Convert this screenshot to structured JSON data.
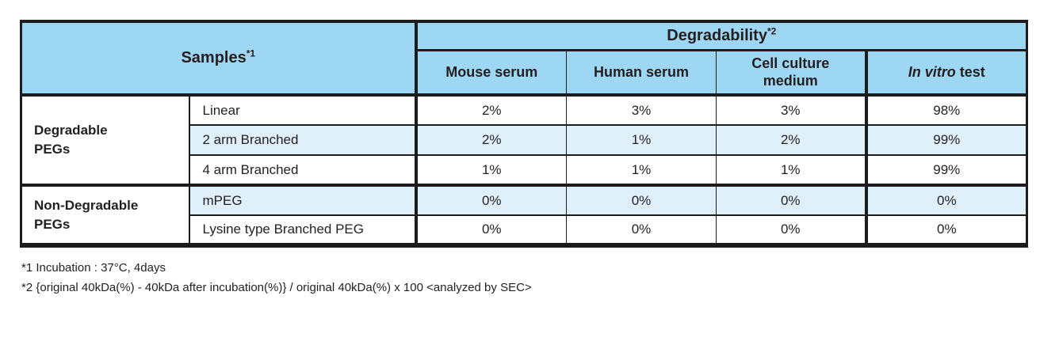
{
  "table": {
    "samples_header": {
      "text": "Samples",
      "sup": "*1"
    },
    "degradability_header": {
      "text": "Degradability",
      "sup": "*2"
    },
    "columns": [
      {
        "label": "Mouse serum"
      },
      {
        "label": "Human serum"
      },
      {
        "line1": "Cell culture",
        "line2": "medium"
      },
      {
        "italic": "In vitro",
        "rest": " test"
      }
    ],
    "groups": [
      {
        "label_line1": "Degradable",
        "label_line2": "PEGs",
        "rows": [
          {
            "type": "Linear",
            "values": [
              "2%",
              "3%",
              "3%",
              "98%"
            ]
          },
          {
            "type": "2 arm Branched",
            "values": [
              "2%",
              "1%",
              "2%",
              "99%"
            ]
          },
          {
            "type": "4 arm Branched",
            "values": [
              "1%",
              "1%",
              "1%",
              "99%"
            ]
          }
        ]
      },
      {
        "label_line1": "Non-Degradable",
        "label_line2": "PEGs",
        "rows": [
          {
            "type": "mPEG",
            "values": [
              "0%",
              "0%",
              "0%",
              "0%"
            ]
          },
          {
            "type": "Lysine type Branched PEG",
            "values": [
              "0%",
              "0%",
              "0%",
              "0%"
            ]
          }
        ]
      }
    ]
  },
  "footnotes": [
    "*1 Incubation : 37°C, 4days",
    "*2 {original 40kDa(%) - 40kDa after incubation(%)} / original 40kDa(%) x 100 <analyzed by SEC>"
  ],
  "colors": {
    "header_blue": "#9ed7f3",
    "shaded_row_blue": "#e0f0fb",
    "border_black": "#1c1c1c",
    "text": "#231f20"
  }
}
